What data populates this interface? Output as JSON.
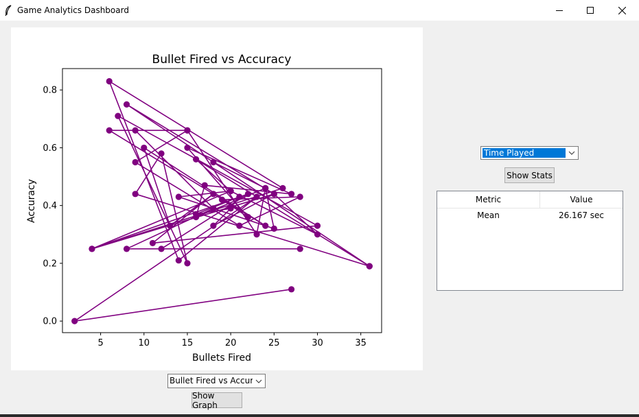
{
  "window": {
    "title": "Game Analytics Dashboard",
    "icon": "feather-icon",
    "controls": [
      "minimize-icon",
      "maximize-icon",
      "close-icon"
    ]
  },
  "graph_selector": {
    "value": "Bullet Fired vs Accuracy",
    "button": "Show Graph"
  },
  "stats_selector": {
    "value": "Time Played",
    "button": "Show Stats"
  },
  "stats_table": {
    "columns": [
      "Metric",
      "Value"
    ],
    "rows": [
      [
        "Mean",
        "26.167 sec"
      ]
    ]
  },
  "chart_data": {
    "type": "line",
    "title": "Bullet Fired vs Accuracy",
    "xlabel": "Bullets Fired",
    "ylabel": "Accuracy",
    "xticks": [
      5,
      10,
      15,
      20,
      25,
      30,
      35
    ],
    "yticks": [
      0.0,
      0.2,
      0.4,
      0.6,
      0.8
    ],
    "xlim": [
      0.6,
      37.4
    ],
    "ylim": [
      -0.04,
      0.874
    ],
    "color": "#800080",
    "grid": false,
    "points": [
      [
        27,
        0.11
      ],
      [
        2,
        0.0
      ],
      [
        23,
        0.43
      ],
      [
        14,
        0.21
      ],
      [
        6,
        0.83
      ],
      [
        26,
        0.46
      ],
      [
        4,
        0.25
      ],
      [
        25,
        0.44
      ],
      [
        8,
        0.75
      ],
      [
        36,
        0.19
      ],
      [
        9,
        0.44
      ],
      [
        12,
        0.58
      ],
      [
        15,
        0.2
      ],
      [
        7,
        0.71
      ],
      [
        30,
        0.33
      ],
      [
        11,
        0.27
      ],
      [
        18,
        0.44
      ],
      [
        13,
        0.33
      ],
      [
        10,
        0.6
      ],
      [
        24,
        0.33
      ],
      [
        6,
        0.66
      ],
      [
        15,
        0.66
      ],
      [
        9,
        0.55
      ],
      [
        21,
        0.33
      ],
      [
        28,
        0.43
      ],
      [
        19,
        0.42
      ],
      [
        22,
        0.36
      ],
      [
        15,
        0.6
      ],
      [
        27,
        0.44
      ],
      [
        17,
        0.47
      ],
      [
        16,
        0.36
      ],
      [
        24,
        0.46
      ],
      [
        18,
        0.55
      ],
      [
        36,
        0.19
      ],
      [
        16,
        0.56
      ],
      [
        20,
        0.45
      ],
      [
        4,
        0.25
      ],
      [
        22,
        0.44
      ],
      [
        12,
        0.25
      ],
      [
        28,
        0.25
      ],
      [
        8,
        0.25
      ],
      [
        18,
        0.39
      ],
      [
        9,
        0.66
      ],
      [
        15,
        0.66
      ],
      [
        23,
        0.3
      ],
      [
        24,
        0.46
      ],
      [
        25,
        0.32
      ],
      [
        14,
        0.43
      ],
      [
        20,
        0.45
      ],
      [
        30,
        0.3
      ],
      [
        25,
        0.44
      ],
      [
        18,
        0.33
      ],
      [
        20,
        0.39
      ],
      [
        16,
        0.37
      ],
      [
        21,
        0.43
      ]
    ]
  }
}
